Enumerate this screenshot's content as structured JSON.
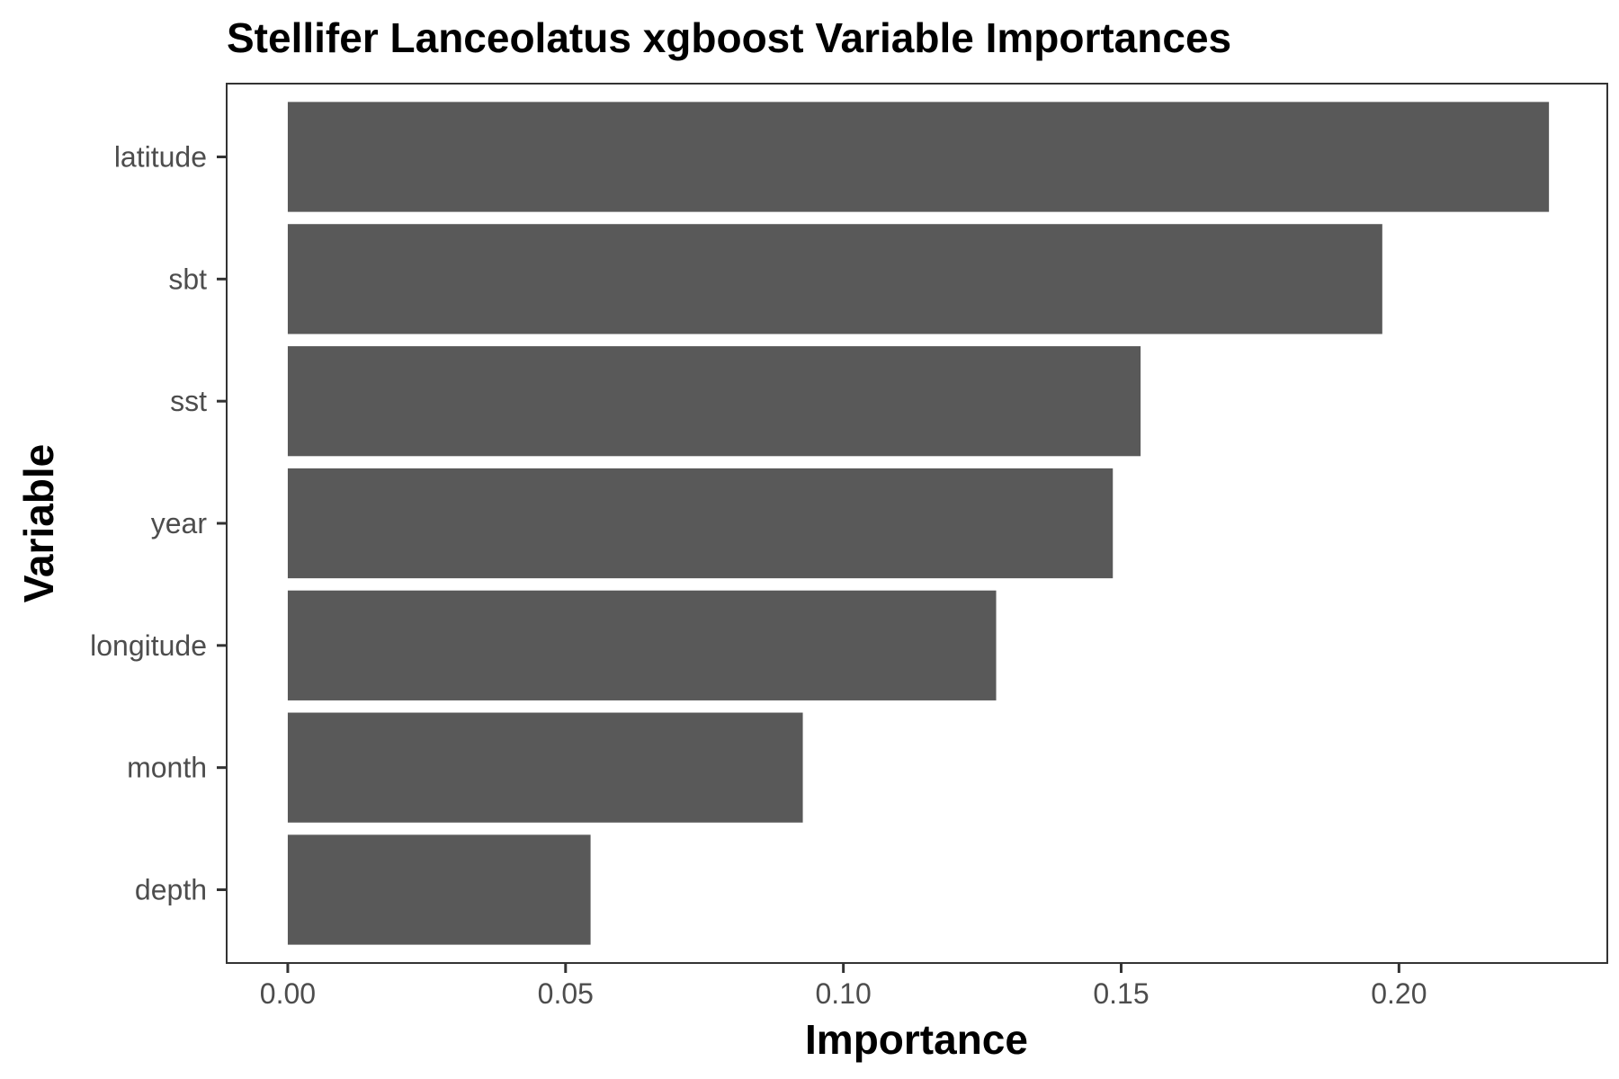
{
  "chart_data": {
    "type": "bar",
    "orientation": "horizontal",
    "title": "Stellifer Lanceolatus xgboost Variable Importances",
    "xlabel": "Importance",
    "ylabel": "Variable",
    "categories": [
      "latitude",
      "sbt",
      "sst",
      "year",
      "longitude",
      "month",
      "depth"
    ],
    "values": [
      0.227,
      0.197,
      0.1535,
      0.1485,
      0.1275,
      0.0927,
      0.0545
    ],
    "xlim": [
      -0.011,
      0.2375
    ],
    "xticks": [
      0.0,
      0.05,
      0.1,
      0.15,
      0.2
    ],
    "xtick_labels": [
      "0.00",
      "0.05",
      "0.10",
      "0.15",
      "0.20"
    ],
    "bar_color": "#595959",
    "grid": false,
    "legend": "none"
  }
}
